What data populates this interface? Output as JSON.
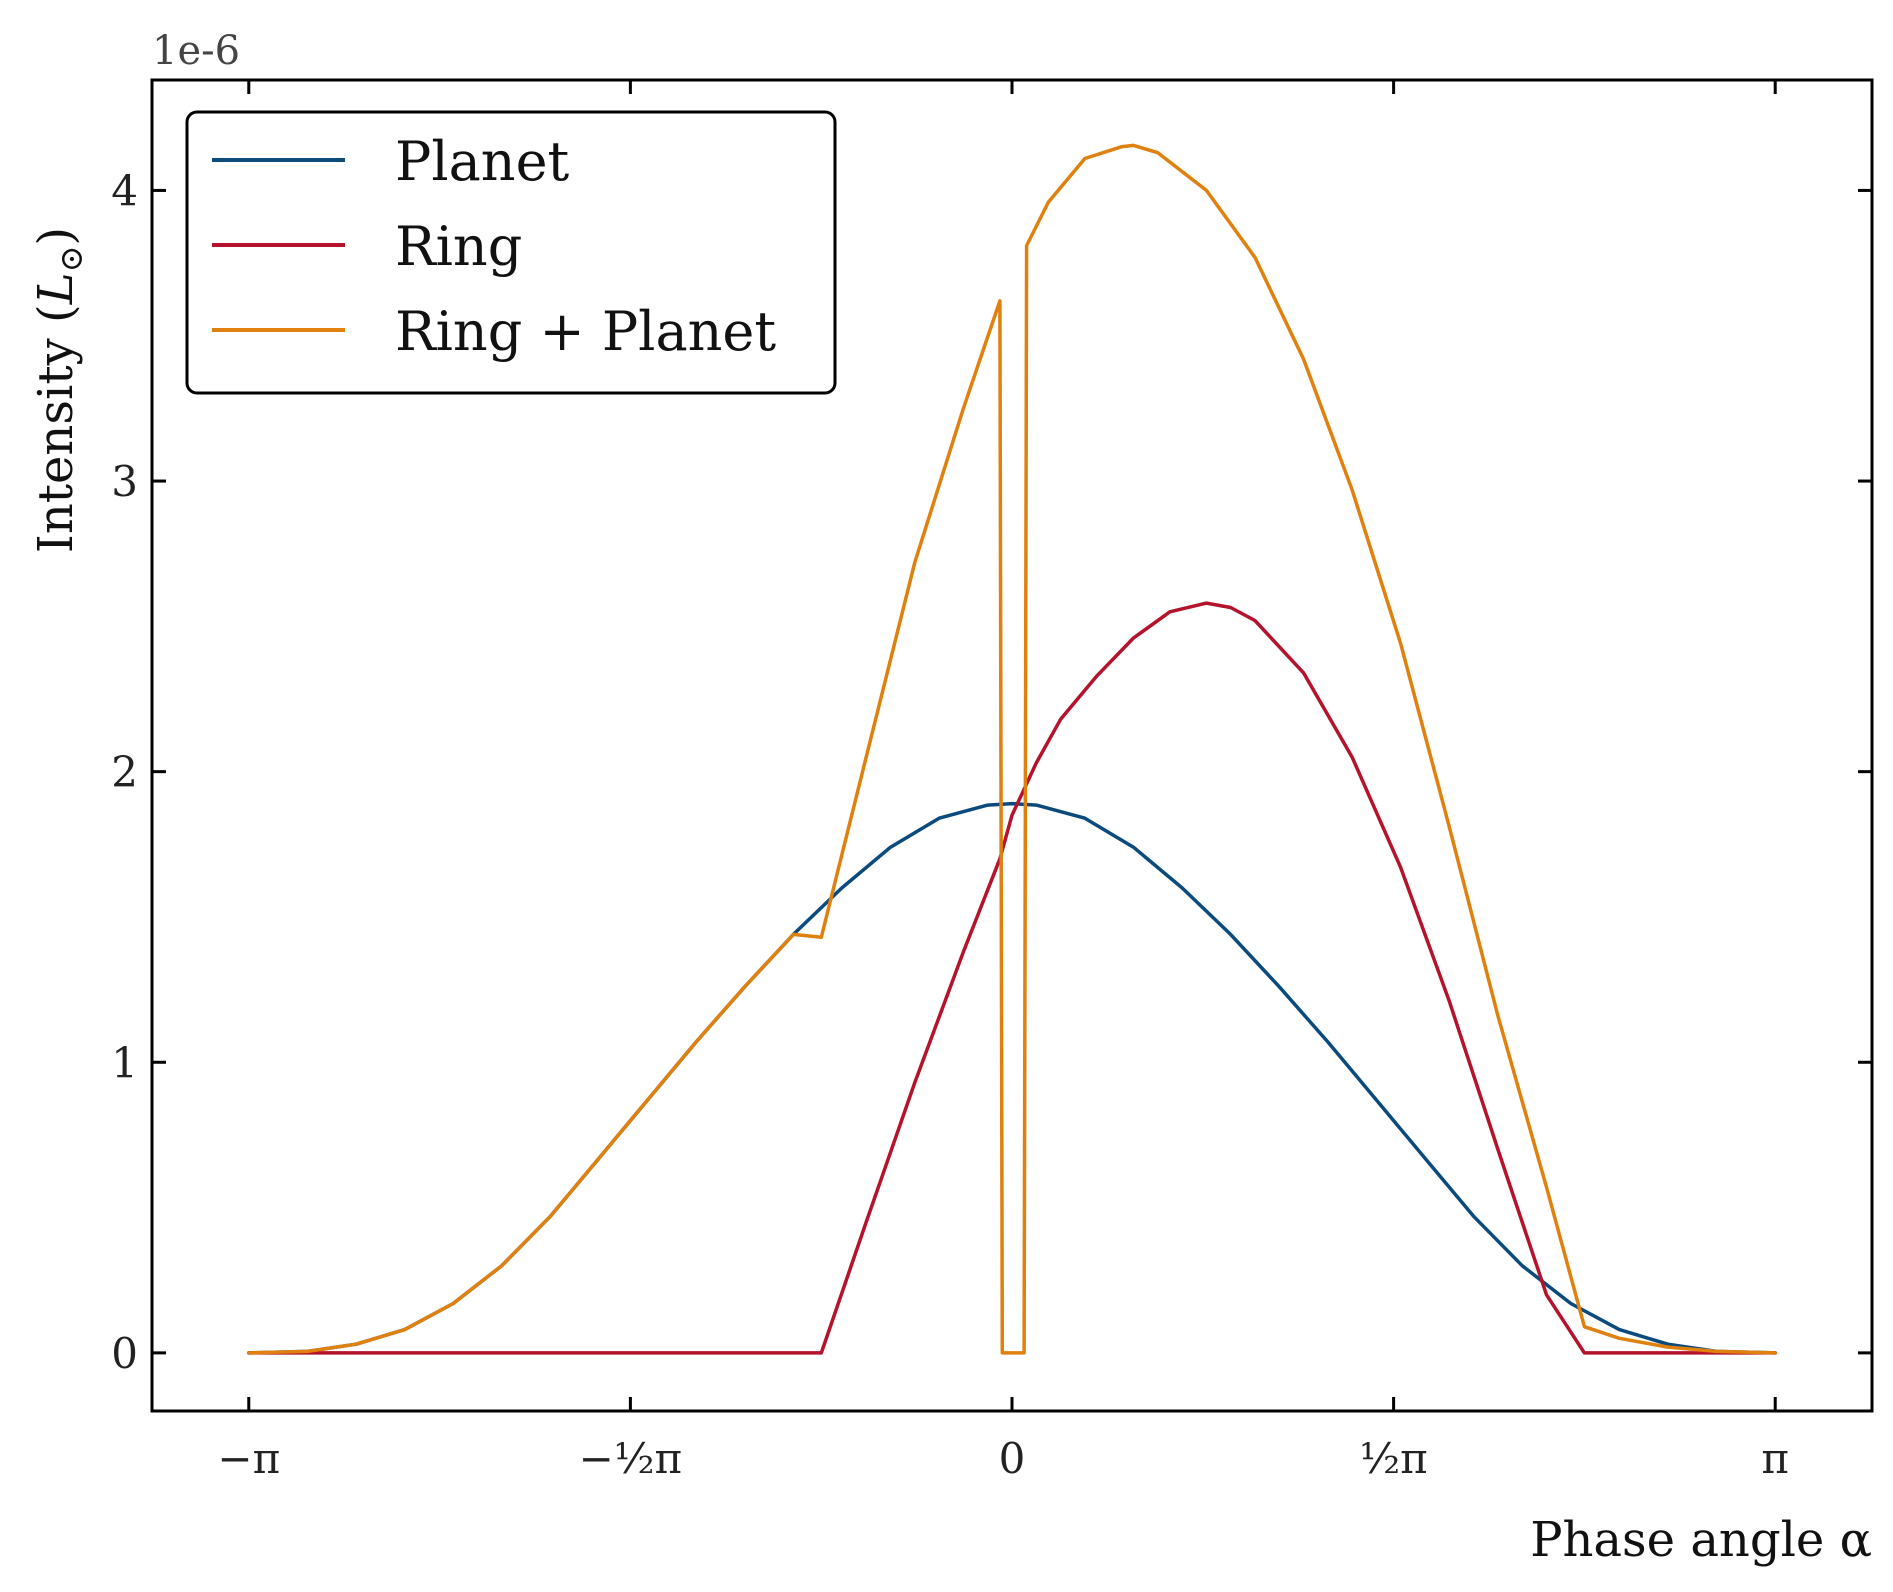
{
  "chart_data": {
    "type": "line",
    "xlabel": "Phase angle α",
    "ylabel_prefix": "Intensity (",
    "ylabel_symbol": "L",
    "ylabel_subscript": "⊙",
    "ylabel_suffix": ")",
    "y_offset_text": "1e-6",
    "xlim": [
      -3.54,
      3.54
    ],
    "ylim": [
      -0.2,
      4.38
    ],
    "grid": false,
    "legend_position": "top-left",
    "x_ticks": [
      {
        "value": -3.14159,
        "label": "−π"
      },
      {
        "value": -1.5708,
        "label": "−½π"
      },
      {
        "value": 0,
        "label": "0"
      },
      {
        "value": 1.5708,
        "label": "½π"
      },
      {
        "value": 3.14159,
        "label": "π"
      }
    ],
    "y_ticks": [
      {
        "value": 0,
        "label": "0"
      },
      {
        "value": 1,
        "label": "1"
      },
      {
        "value": 2,
        "label": "2"
      },
      {
        "value": 3,
        "label": "3"
      },
      {
        "value": 4,
        "label": "4"
      }
    ],
    "series": [
      {
        "name": "Planet",
        "color": "#0a4a7c",
        "x": [
          -3.1416,
          -2.9,
          -2.7,
          -2.5,
          -2.3,
          -2.1,
          -1.9,
          -1.7,
          -1.5,
          -1.3,
          -1.1,
          -0.9,
          -0.7,
          -0.5,
          -0.3,
          -0.1,
          0.0,
          0.1,
          0.3,
          0.5,
          0.7,
          0.9,
          1.1,
          1.3,
          1.5,
          1.7,
          1.9,
          2.1,
          2.3,
          2.5,
          2.7,
          2.9,
          3.1416
        ],
        "y": [
          0.0,
          0.005,
          0.03,
          0.08,
          0.17,
          0.3,
          0.47,
          0.67,
          0.87,
          1.07,
          1.26,
          1.44,
          1.6,
          1.74,
          1.84,
          1.885,
          1.89,
          1.885,
          1.84,
          1.74,
          1.6,
          1.44,
          1.26,
          1.07,
          0.87,
          0.67,
          0.47,
          0.3,
          0.17,
          0.08,
          0.03,
          0.005,
          0.0
        ]
      },
      {
        "name": "Ring",
        "color": "#b5122b",
        "x": [
          -3.1416,
          -0.785,
          -0.6,
          -0.4,
          -0.2,
          -0.05,
          0.0,
          0.1,
          0.2,
          0.35,
          0.5,
          0.65,
          0.8,
          0.9,
          1.0,
          1.2,
          1.4,
          1.6,
          1.8,
          2.0,
          2.2,
          2.356,
          3.1416
        ],
        "y": [
          0.0,
          0.0,
          0.45,
          0.93,
          1.38,
          1.7,
          1.85,
          2.03,
          2.18,
          2.33,
          2.46,
          2.55,
          2.58,
          2.565,
          2.52,
          2.34,
          2.05,
          1.67,
          1.21,
          0.7,
          0.2,
          0.0,
          0.0
        ]
      },
      {
        "name": "Ring + Planet",
        "color": "#e0800e",
        "x": [
          -3.1416,
          -2.9,
          -2.7,
          -2.5,
          -2.3,
          -2.1,
          -1.9,
          -1.7,
          -1.5,
          -1.3,
          -1.1,
          -0.9,
          -0.785,
          -0.6,
          -0.4,
          -0.2,
          -0.05,
          -0.04,
          -0.03,
          0.04,
          0.05,
          0.06,
          0.15,
          0.3,
          0.45,
          0.5,
          0.6,
          0.8,
          1.0,
          1.2,
          1.4,
          1.6,
          1.8,
          2.0,
          2.2,
          2.356,
          2.5,
          2.7,
          2.9,
          3.1416
        ],
        "y": [
          0.0,
          0.005,
          0.03,
          0.08,
          0.17,
          0.3,
          0.47,
          0.67,
          0.87,
          1.07,
          1.26,
          1.44,
          1.43,
          2.05,
          2.72,
          3.25,
          3.62,
          0.0,
          0.0,
          0.0,
          0.0,
          3.81,
          3.96,
          4.11,
          4.15,
          4.155,
          4.13,
          4.0,
          3.77,
          3.42,
          2.97,
          2.44,
          1.81,
          1.16,
          0.57,
          0.09,
          0.05,
          0.02,
          0.005,
          0.0
        ]
      }
    ]
  }
}
